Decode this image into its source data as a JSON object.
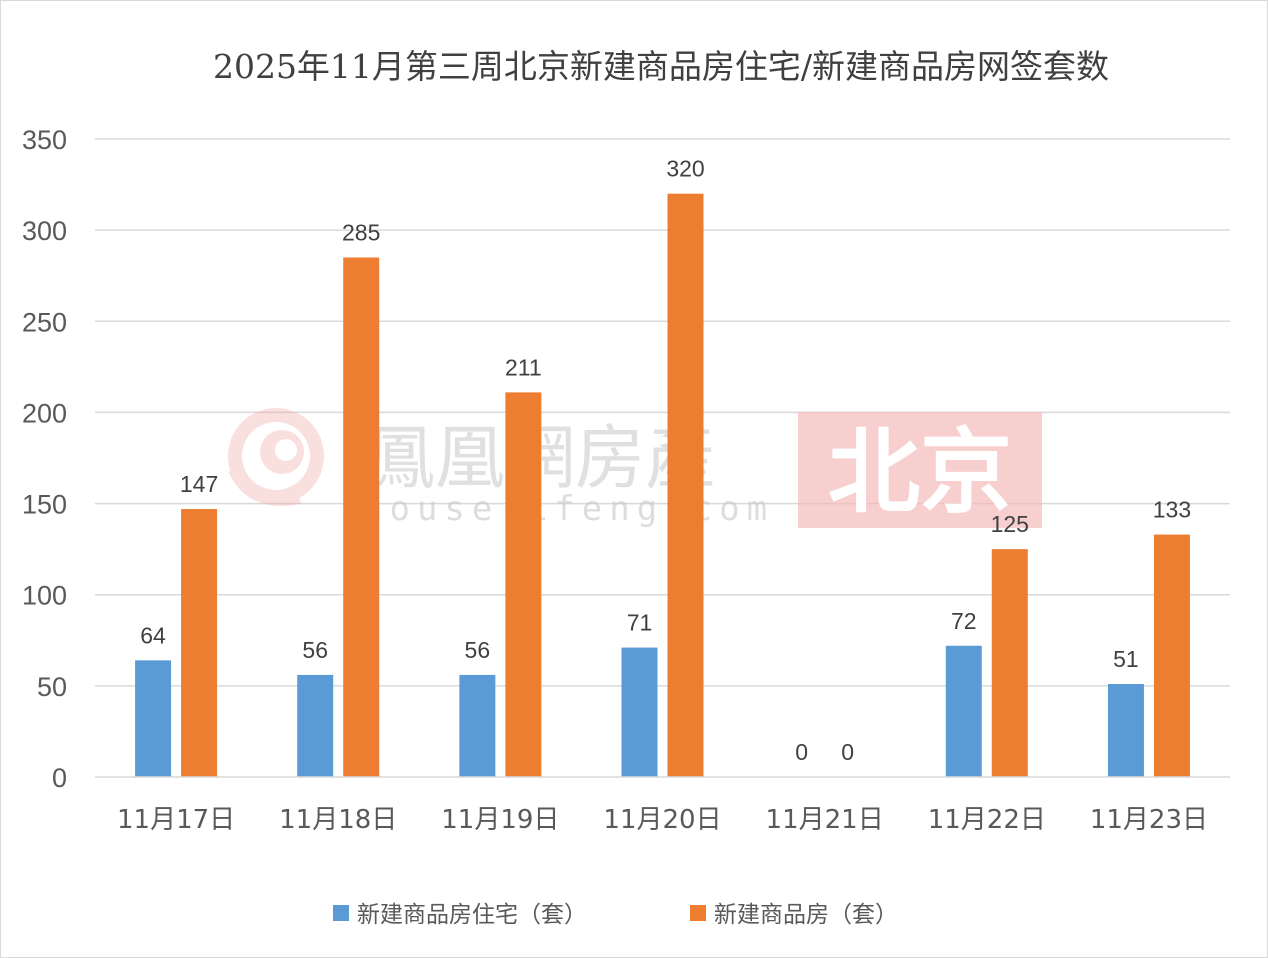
{
  "chart_data": {
    "type": "bar",
    "title": "2025年11月第三周北京新建商品房住宅/新建商品房网签套数",
    "categories": [
      "11月17日",
      "11月18日",
      "11月19日",
      "11月20日",
      "11月21日",
      "11月22日",
      "11月23日"
    ],
    "series": [
      {
        "name": "新建商品房住宅（套）",
        "color": "#5b9bd5",
        "values": [
          64,
          56,
          56,
          71,
          0,
          72,
          51
        ]
      },
      {
        "name": "新建商品房（套）",
        "color": "#ed7d31",
        "values": [
          147,
          285,
          211,
          320,
          0,
          125,
          133
        ]
      }
    ],
    "ylim": [
      0,
      350
    ],
    "yticks": [
      0,
      50,
      100,
      150,
      200,
      250,
      300,
      350
    ],
    "grid": true,
    "legend_position": "bottom",
    "data_labels": true
  },
  "watermark": {
    "brand": "鳳凰網房產",
    "url": "house.ifeng.com",
    "city": "北京",
    "icon": "ifeng-phoenix-logo"
  }
}
